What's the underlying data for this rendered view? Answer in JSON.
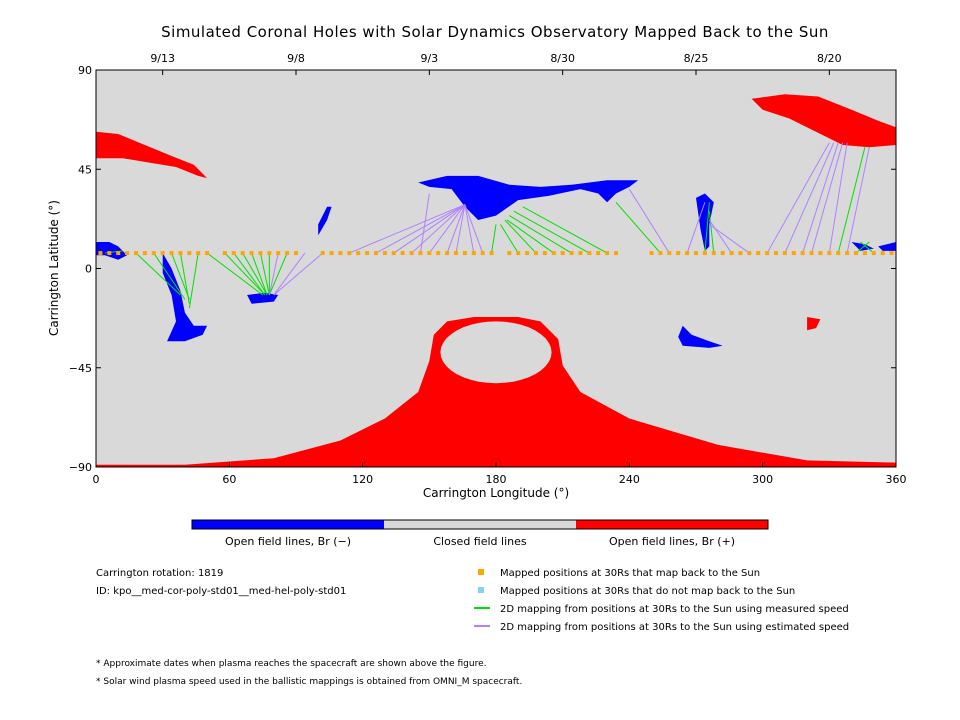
{
  "chart_data": {
    "type": "map",
    "title": "Simulated Coronal Holes with Solar Dynamics Observatory Mapped Back to the Sun",
    "xlabel": "Carrington Longitude (°)",
    "ylabel": "Carrington Latitude (°)",
    "xlim": [
      0,
      360
    ],
    "ylim": [
      -90,
      90
    ],
    "x_ticks": [
      "0",
      "60",
      "120",
      "180",
      "240",
      "300",
      "360"
    ],
    "y_ticks": [
      "90",
      "45",
      "0",
      "−45",
      "−90"
    ],
    "top_dates": [
      {
        "label": "9/13",
        "lon": 30
      },
      {
        "label": "9/8",
        "lon": 90
      },
      {
        "label": "9/3",
        "lon": 150
      },
      {
        "label": "8/30",
        "lon": 210
      },
      {
        "label": "8/25",
        "lon": 270
      },
      {
        "label": "8/20",
        "lon": 330
      }
    ],
    "background_color": "#d9d9d9",
    "colors": {
      "open_negative": "#0000ff",
      "closed": "#d9d9d9",
      "open_positive": "#ff0000",
      "mapped": "#ffa500",
      "unmapped": "#87cefa",
      "measured": "#00e000",
      "estimated": "#b080ff"
    },
    "coronal_holes": [
      {
        "polarity": "positive",
        "region": "south polar cap",
        "lat_range": [
          -90,
          -20
        ],
        "lon_range": [
          0,
          360
        ]
      },
      {
        "polarity": "positive",
        "region": "north-east extension",
        "lat_range": [
          54,
          78
        ],
        "lon_range": [
          295,
          360
        ]
      },
      {
        "polarity": "positive",
        "region": "north-west extension",
        "lat_range": [
          40,
          62
        ],
        "lon_range": [
          0,
          50
        ]
      },
      {
        "polarity": "positive",
        "region": "small patch",
        "lat_range": [
          -28,
          -22
        ],
        "lon_range": [
          320,
          326
        ]
      },
      {
        "polarity": "negative",
        "region": "central northern hole",
        "lat_range": [
          22,
          44
        ],
        "lon_range": [
          140,
          245
        ]
      },
      {
        "polarity": "negative",
        "region": "southern extension",
        "lat_range": [
          -32,
          0
        ],
        "lon_range": [
          30,
          50
        ]
      },
      {
        "polarity": "negative",
        "region": "small southern hole",
        "lat_range": [
          -36,
          -26
        ],
        "lon_range": [
          263,
          282
        ]
      },
      {
        "polarity": "negative",
        "region": "small hole",
        "lat_range": [
          -16,
          -10
        ],
        "lon_range": [
          68,
          82
        ]
      },
      {
        "polarity": "negative",
        "region": "elongated hole",
        "lat_range": [
          0,
          35
        ],
        "lon_range": [
          270,
          278
        ]
      }
    ],
    "mapped_latitude": 7,
    "mapped_longitudes": [
      2,
      6,
      10,
      14,
      18,
      22,
      26,
      30,
      34,
      38,
      42,
      46,
      50,
      58,
      62,
      66,
      70,
      74,
      78,
      82,
      86,
      90,
      102,
      106,
      110,
      114,
      118,
      122,
      126,
      130,
      134,
      138,
      142,
      146,
      150,
      154,
      158,
      162,
      166,
      170,
      174,
      178,
      186,
      190,
      194,
      198,
      202,
      206,
      210,
      214,
      218,
      222,
      226,
      230,
      234,
      250,
      254,
      258,
      262,
      266,
      270,
      274,
      278,
      282,
      286,
      290,
      294,
      298,
      302,
      306,
      310,
      314,
      318,
      322,
      326,
      330,
      334,
      338,
      342,
      346,
      350,
      354,
      358
    ],
    "mapping_lines": [
      {
        "type": "measured",
        "from": [
          4,
          7
        ],
        "to": [
          12,
          8
        ]
      },
      {
        "type": "measured",
        "from": [
          18,
          7
        ],
        "to": [
          38,
          -12
        ]
      },
      {
        "type": "measured",
        "from": [
          26,
          7
        ],
        "to": [
          40,
          -14
        ]
      },
      {
        "type": "measured",
        "from": [
          34,
          7
        ],
        "to": [
          42,
          -14
        ]
      },
      {
        "type": "measured",
        "from": [
          38,
          7
        ],
        "to": [
          42,
          -16
        ]
      },
      {
        "type": "measured",
        "from": [
          46,
          7
        ],
        "to": [
          42,
          -18
        ]
      },
      {
        "type": "measured",
        "from": [
          50,
          7
        ],
        "to": [
          75,
          -12
        ]
      },
      {
        "type": "measured",
        "from": [
          58,
          7
        ],
        "to": [
          76,
          -12
        ]
      },
      {
        "type": "measured",
        "from": [
          62,
          7
        ],
        "to": [
          76,
          -12
        ]
      },
      {
        "type": "measured",
        "from": [
          66,
          7
        ],
        "to": [
          77,
          -12
        ]
      },
      {
        "type": "measured",
        "from": [
          70,
          7
        ],
        "to": [
          77,
          -12
        ]
      },
      {
        "type": "measured",
        "from": [
          74,
          7
        ],
        "to": [
          78,
          -12
        ]
      },
      {
        "type": "measured",
        "from": [
          78,
          7
        ],
        "to": [
          78,
          -12
        ]
      },
      {
        "type": "measured",
        "from": [
          86,
          7
        ],
        "to": [
          78,
          -12
        ]
      },
      {
        "type": "estimated",
        "from": [
          82,
          7
        ],
        "to": [
          78,
          -12
        ]
      },
      {
        "type": "estimated",
        "from": [
          94,
          7
        ],
        "to": [
          80,
          -12
        ]
      },
      {
        "type": "estimated",
        "from": [
          102,
          7
        ],
        "to": [
          80,
          -12
        ]
      },
      {
        "type": "estimated",
        "from": [
          114,
          7
        ],
        "to": [
          166,
          29
        ]
      },
      {
        "type": "estimated",
        "from": [
          126,
          7
        ],
        "to": [
          166,
          29
        ]
      },
      {
        "type": "estimated",
        "from": [
          134,
          7
        ],
        "to": [
          166,
          29
        ]
      },
      {
        "type": "estimated",
        "from": [
          142,
          7
        ],
        "to": [
          166,
          29
        ]
      },
      {
        "type": "estimated",
        "from": [
          150,
          7
        ],
        "to": [
          166,
          29
        ]
      },
      {
        "type": "estimated",
        "from": [
          158,
          7
        ],
        "to": [
          166,
          29
        ]
      },
      {
        "type": "estimated",
        "from": [
          162,
          7
        ],
        "to": [
          166,
          29
        ]
      },
      {
        "type": "estimated",
        "from": [
          170,
          7
        ],
        "to": [
          166,
          29
        ]
      },
      {
        "type": "estimated",
        "from": [
          174,
          7
        ],
        "to": [
          166,
          29
        ]
      },
      {
        "type": "estimated",
        "from": [
          146,
          7
        ],
        "to": [
          150,
          34
        ]
      },
      {
        "type": "measured",
        "from": [
          178,
          7
        ],
        "to": [
          180,
          20
        ]
      },
      {
        "type": "measured",
        "from": [
          190,
          7
        ],
        "to": [
          182,
          20
        ]
      },
      {
        "type": "measured",
        "from": [
          198,
          7
        ],
        "to": [
          184,
          22
        ]
      },
      {
        "type": "measured",
        "from": [
          206,
          7
        ],
        "to": [
          185,
          22
        ]
      },
      {
        "type": "measured",
        "from": [
          214,
          7
        ],
        "to": [
          186,
          24
        ]
      },
      {
        "type": "measured",
        "from": [
          222,
          7
        ],
        "to": [
          188,
          26
        ]
      },
      {
        "type": "measured",
        "from": [
          230,
          7
        ],
        "to": [
          192,
          28
        ]
      },
      {
        "type": "measured",
        "from": [
          254,
          7
        ],
        "to": [
          234,
          30
        ]
      },
      {
        "type": "estimated",
        "from": [
          258,
          7
        ],
        "to": [
          240,
          36
        ]
      },
      {
        "type": "estimated",
        "from": [
          266,
          7
        ],
        "to": [
          274,
          30
        ]
      },
      {
        "type": "measured",
        "from": [
          274,
          7
        ],
        "to": [
          276,
          30
        ]
      },
      {
        "type": "measured",
        "from": [
          278,
          7
        ],
        "to": [
          276,
          26
        ]
      },
      {
        "type": "estimated",
        "from": [
          286,
          7
        ],
        "to": [
          276,
          22
        ]
      },
      {
        "type": "estimated",
        "from": [
          294,
          7
        ],
        "to": [
          276,
          20
        ]
      },
      {
        "type": "estimated",
        "from": [
          302,
          7
        ],
        "to": [
          330,
          57
        ]
      },
      {
        "type": "estimated",
        "from": [
          310,
          7
        ],
        "to": [
          332,
          57
        ]
      },
      {
        "type": "estimated",
        "from": [
          318,
          7
        ],
        "to": [
          334,
          57
        ]
      },
      {
        "type": "estimated",
        "from": [
          322,
          7
        ],
        "to": [
          336,
          57
        ]
      },
      {
        "type": "estimated",
        "from": [
          330,
          7
        ],
        "to": [
          338,
          57
        ]
      },
      {
        "type": "measured",
        "from": [
          334,
          7
        ],
        "to": [
          346,
          55
        ]
      },
      {
        "type": "estimated",
        "from": [
          338,
          7
        ],
        "to": [
          348,
          55
        ]
      },
      {
        "type": "measured",
        "from": [
          342,
          7
        ],
        "to": [
          348,
          12
        ]
      },
      {
        "type": "measured",
        "from": [
          350,
          7
        ],
        "to": [
          344,
          12
        ]
      }
    ]
  },
  "colorbar": {
    "negative_label": "Open field lines, Br (−)",
    "closed_label": "Closed field lines",
    "positive_label": "Open field lines, Br (+)"
  },
  "info": {
    "rotation": "Carrington rotation: 1819",
    "id": "ID: kpo__med-cor-poly-std01__med-hel-poly-std01"
  },
  "legend": [
    {
      "marker": "square",
      "color": "#ffa500",
      "label": "Mapped positions at 30Rs that map back to the Sun"
    },
    {
      "marker": "square",
      "color": "#87cefa",
      "label": "Mapped positions at 30Rs that do not map back to the Sun"
    },
    {
      "marker": "line",
      "color": "#00e000",
      "label": "2D mapping from positions at 30Rs to the Sun using measured speed"
    },
    {
      "marker": "line",
      "color": "#b080ff",
      "label": "2D mapping from positions at 30Rs to the Sun using estimated speed"
    }
  ],
  "footnotes": [
    "* Approximate dates when plasma reaches the spacecraft are shown above the figure.",
    "* Solar wind plasma speed used in the ballistic mappings is obtained from OMNI_M spacecraft."
  ]
}
